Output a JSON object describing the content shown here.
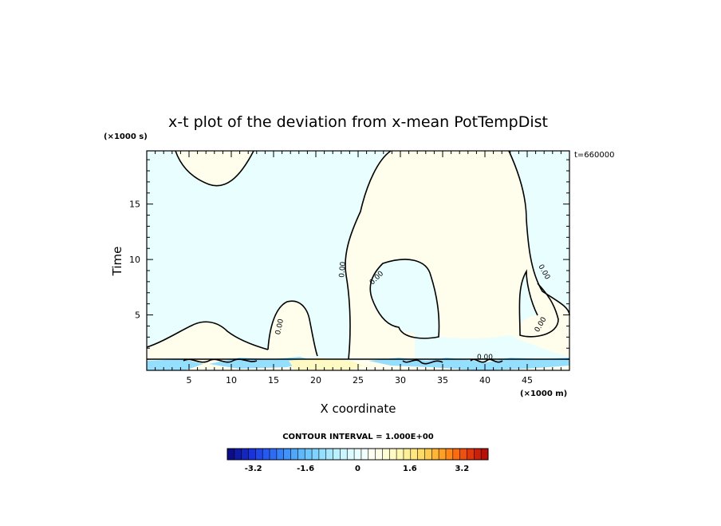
{
  "chart_data": {
    "type": "heatmap",
    "title": "x-t plot of the deviation from x-mean PotTempDist",
    "xlabel": "X coordinate",
    "ylabel": "Time",
    "x_unit": "(×1000 m)",
    "y_unit": "(×1000 s)",
    "time_stamp": "t=660000",
    "xlim": [
      0,
      50
    ],
    "ylim": [
      0,
      19.8
    ],
    "x_ticks": [
      5,
      10,
      15,
      20,
      25,
      30,
      35,
      40,
      45
    ],
    "x_tick_labels": [
      "5",
      "10",
      "15",
      "20",
      "25",
      "30",
      "35",
      "40",
      "45"
    ],
    "y_ticks": [
      5,
      10,
      15
    ],
    "y_tick_labels": [
      "5",
      "10",
      "15"
    ],
    "contour_interval": "CONTOUR INTERVAL = 1.000E+00",
    "contour_level_label": "0.00",
    "background_value_color": "#e8feff",
    "positive_region_color": "#fffdec",
    "colorbar": {
      "range": [
        -4,
        4
      ],
      "tick_values": [
        -3.2,
        -1.6,
        0,
        1.6,
        3.2
      ],
      "tick_labels": [
        "-3.2",
        "-1.6",
        "0",
        "1.6",
        "3.2"
      ],
      "colors": [
        "#0d0d8c",
        "#0f1aa6",
        "#1426c0",
        "#1a33d9",
        "#1f47eb",
        "#2659f2",
        "#2e6cf6",
        "#3680f8",
        "#4193fa",
        "#4fa6fb",
        "#5fb8fc",
        "#6ec6fd",
        "#80d3fe",
        "#94defe",
        "#a8e8ff",
        "#bbf0ff",
        "#ccf6ff",
        "#dcfbff",
        "#e8feff",
        "#f2ffff",
        "#fffff2",
        "#fffee6",
        "#fffdd6",
        "#fffac4",
        "#fff6b0",
        "#ffef98",
        "#ffe67f",
        "#ffda66",
        "#ffca4d",
        "#ffb636",
        "#ffa024",
        "#ff8718",
        "#fb6c12",
        "#f0500e",
        "#e0360c",
        "#cc200a",
        "#b81008"
      ]
    }
  }
}
